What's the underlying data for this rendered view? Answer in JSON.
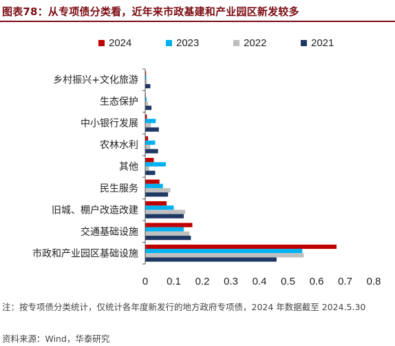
{
  "title": "图表78：从专项债分类看，近年来市政基建和产业园区新发较多",
  "note": "注：按专项债分类统计，仅统计各年度新发行的地方政府专项债，2024 年数据截至 2024.5.30",
  "source": "资料来源：Wind，华泰研究",
  "chart_data": {
    "type": "bar",
    "orientation": "horizontal",
    "categories": [
      "乡村振兴+文化旅游",
      "生态保护",
      "中小银行发展",
      "农林水利",
      "其他",
      "民生服务",
      "旧城、棚户改造改建",
      "交通基础设施",
      "市政和产业园区基础设施"
    ],
    "series": [
      {
        "name": "2024",
        "color": "#c00000",
        "values": [
          0.003,
          0.002,
          0.006,
          0.01,
          0.03,
          0.05,
          0.075,
          0.165,
          0.67
        ]
      },
      {
        "name": "2023",
        "color": "#00b0f0",
        "values": [
          0.004,
          0.005,
          0.037,
          0.035,
          0.072,
          0.062,
          0.1,
          0.135,
          0.55
        ]
      },
      {
        "name": "2022",
        "color": "#bfbfbf",
        "values": [
          0.006,
          0.01,
          0.02,
          0.018,
          0.014,
          0.088,
          0.14,
          0.155,
          0.555
        ]
      },
      {
        "name": "2021",
        "color": "#1f3864",
        "values": [
          0.018,
          0.022,
          0.048,
          0.045,
          0.035,
          0.08,
          0.135,
          0.16,
          0.46
        ]
      }
    ],
    "xlim": [
      0,
      0.8
    ],
    "xticks": [
      "0",
      "0.1",
      "0.2",
      "0.3",
      "0.4",
      "0.5",
      "0.6",
      "0.7",
      "0.8"
    ],
    "legend_position": "top",
    "grid": false
  }
}
